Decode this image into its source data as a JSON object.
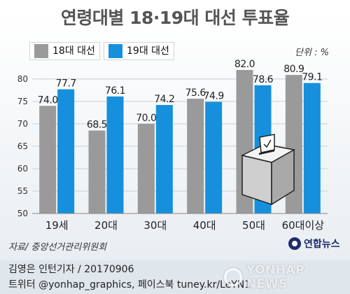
{
  "title": "연령대별 18·19대 대선 투표율",
  "unit": "단위 : %",
  "source": "자료/ 중앙선거관리위원회",
  "logo_text": "연합뉴스",
  "credit_line1": "김영은 인턴기자 / 20170906",
  "credit_line2": "트위터 @yonhap_graphics, 페이스북 tuney.kr/LeYN1",
  "watermark": "YONHAP NEWS",
  "colors": {
    "series18": "#9a9a9a",
    "series19": "#1690dc"
  },
  "chart_data": {
    "type": "bar",
    "title": "연령대별 18·19대 대선 투표율",
    "categories": [
      "19세",
      "20대",
      "30대",
      "40대",
      "50대",
      "60대이상"
    ],
    "series": [
      {
        "name": "18대 대선",
        "values": [
          74.0,
          68.5,
          70.0,
          75.6,
          82.0,
          80.9
        ]
      },
      {
        "name": "19대 대선",
        "values": [
          77.7,
          76.1,
          74.2,
          74.9,
          78.6,
          79.1
        ]
      }
    ],
    "value_labels": [
      [
        "74.0",
        "68.5",
        "70.0",
        "75.6",
        "82.0",
        "80.9"
      ],
      [
        "77.7",
        "76.1",
        "74.2",
        "74.9",
        "78.6",
        "79.1"
      ]
    ],
    "ylim": [
      50,
      82
    ],
    "yticks": [
      50,
      55,
      60,
      65,
      70,
      75,
      80
    ],
    "ytick_labels": [
      "50",
      "55",
      "60",
      "65",
      "70",
      "75",
      "80"
    ],
    "grid": true,
    "legend": "top-left"
  }
}
